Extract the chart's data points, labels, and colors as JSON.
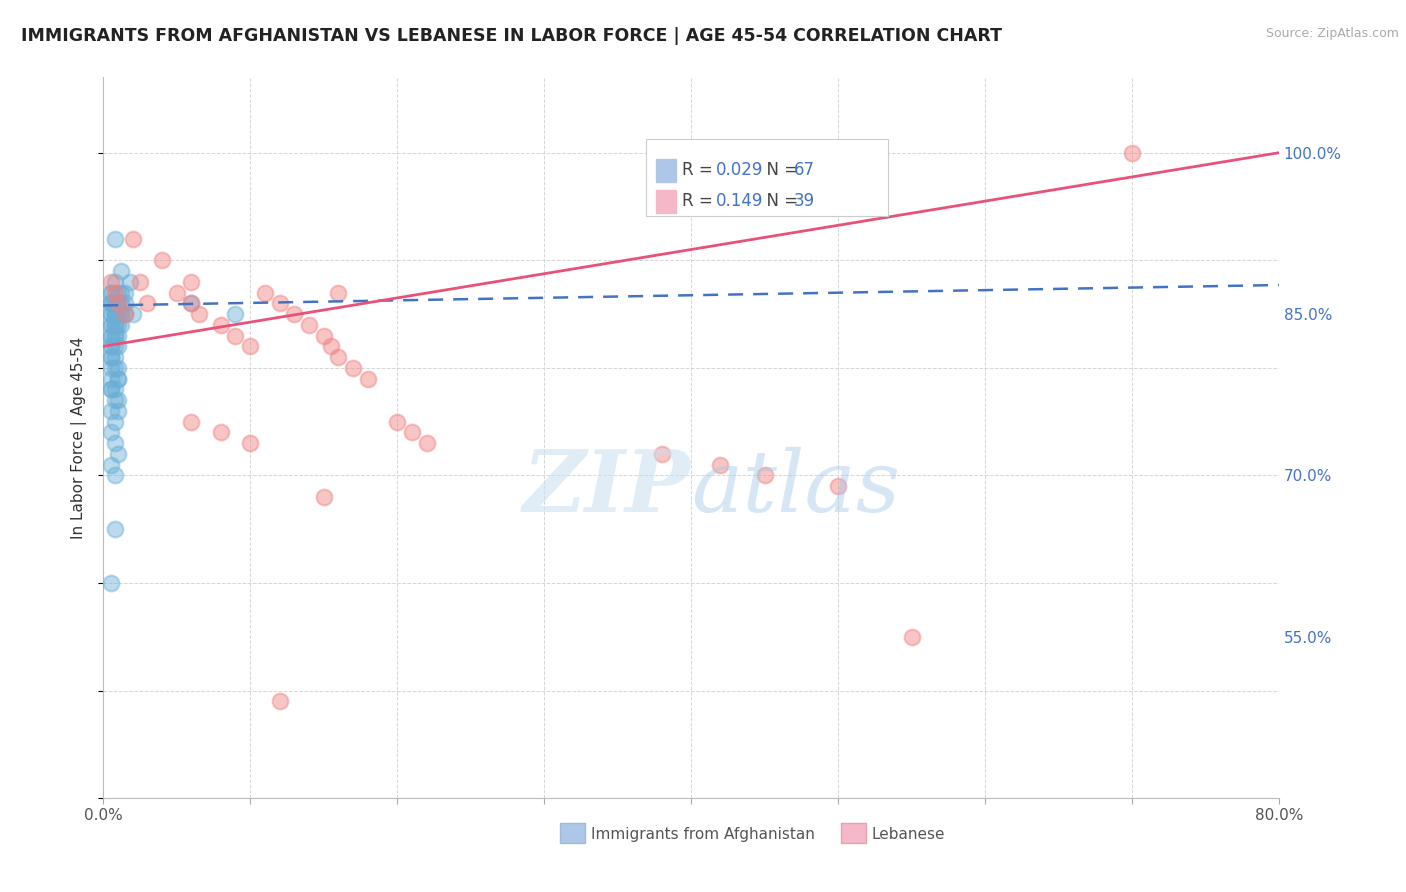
{
  "title": "IMMIGRANTS FROM AFGHANISTAN VS LEBANESE IN LABOR FORCE | AGE 45-54 CORRELATION CHART",
  "source": "Source: ZipAtlas.com",
  "ylabel": "In Labor Force | Age 45-54",
  "xlim": [
    0.0,
    0.8
  ],
  "ylim": [
    0.4,
    1.07
  ],
  "ytick_labels_right": [
    "100.0%",
    "85.0%",
    "70.0%",
    "55.0%"
  ],
  "ytick_positions_right": [
    1.0,
    0.85,
    0.7,
    0.55
  ],
  "grid_color": "#cccccc",
  "background_color": "#ffffff",
  "afghanistan_color": "#6aaed6",
  "lebanese_color": "#f08080",
  "afghanistan_line_color": "#4472c4",
  "lebanese_line_color": "#e8527a",
  "afghanistan_scatter_x": [
    0.005,
    0.008,
    0.01,
    0.012,
    0.015,
    0.018,
    0.005,
    0.008,
    0.01,
    0.012,
    0.005,
    0.008,
    0.01,
    0.012,
    0.015,
    0.005,
    0.008,
    0.01,
    0.005,
    0.008,
    0.01,
    0.012,
    0.005,
    0.008,
    0.01,
    0.005,
    0.008,
    0.01,
    0.005,
    0.008,
    0.01,
    0.012,
    0.005,
    0.008,
    0.005,
    0.008,
    0.005,
    0.01,
    0.005,
    0.008,
    0.005,
    0.008,
    0.01,
    0.005,
    0.008,
    0.005,
    0.008,
    0.01,
    0.005,
    0.008,
    0.005,
    0.008,
    0.005,
    0.01,
    0.005,
    0.008,
    0.005,
    0.01,
    0.005,
    0.008,
    0.015,
    0.02,
    0.005,
    0.008,
    0.06,
    0.09,
    0.005
  ],
  "afghanistan_scatter_y": [
    0.87,
    0.88,
    0.86,
    0.89,
    0.87,
    0.88,
    0.86,
    0.85,
    0.84,
    0.87,
    0.85,
    0.86,
    0.87,
    0.84,
    0.85,
    0.83,
    0.84,
    0.85,
    0.82,
    0.83,
    0.86,
    0.85,
    0.84,
    0.83,
    0.82,
    0.81,
    0.8,
    0.79,
    0.78,
    0.77,
    0.76,
    0.86,
    0.85,
    0.84,
    0.83,
    0.82,
    0.81,
    0.8,
    0.86,
    0.85,
    0.79,
    0.78,
    0.77,
    0.76,
    0.75,
    0.74,
    0.73,
    0.72,
    0.71,
    0.7,
    0.86,
    0.85,
    0.84,
    0.83,
    0.82,
    0.81,
    0.8,
    0.79,
    0.78,
    0.65,
    0.86,
    0.85,
    0.87,
    0.92,
    0.86,
    0.85,
    0.6
  ],
  "lebanese_scatter_x": [
    0.005,
    0.008,
    0.01,
    0.015,
    0.02,
    0.025,
    0.03,
    0.04,
    0.05,
    0.06,
    0.06,
    0.065,
    0.08,
    0.09,
    0.1,
    0.11,
    0.12,
    0.13,
    0.14,
    0.15,
    0.155,
    0.16,
    0.16,
    0.17,
    0.18,
    0.2,
    0.21,
    0.22,
    0.38,
    0.42,
    0.45,
    0.5,
    0.55,
    0.7,
    0.06,
    0.08,
    0.1,
    0.15,
    0.12
  ],
  "lebanese_scatter_y": [
    0.88,
    0.87,
    0.86,
    0.85,
    0.92,
    0.88,
    0.86,
    0.9,
    0.87,
    0.88,
    0.86,
    0.85,
    0.84,
    0.83,
    0.82,
    0.87,
    0.86,
    0.85,
    0.84,
    0.83,
    0.82,
    0.81,
    0.87,
    0.8,
    0.79,
    0.75,
    0.74,
    0.73,
    0.72,
    0.71,
    0.7,
    0.69,
    0.55,
    1.0,
    0.75,
    0.74,
    0.73,
    0.68,
    0.49
  ],
  "afg_line_x": [
    0.0,
    0.8
  ],
  "afg_line_y": [
    0.858,
    0.877
  ],
  "leb_line_x": [
    0.0,
    0.8
  ],
  "leb_line_y": [
    0.82,
    1.0
  ]
}
